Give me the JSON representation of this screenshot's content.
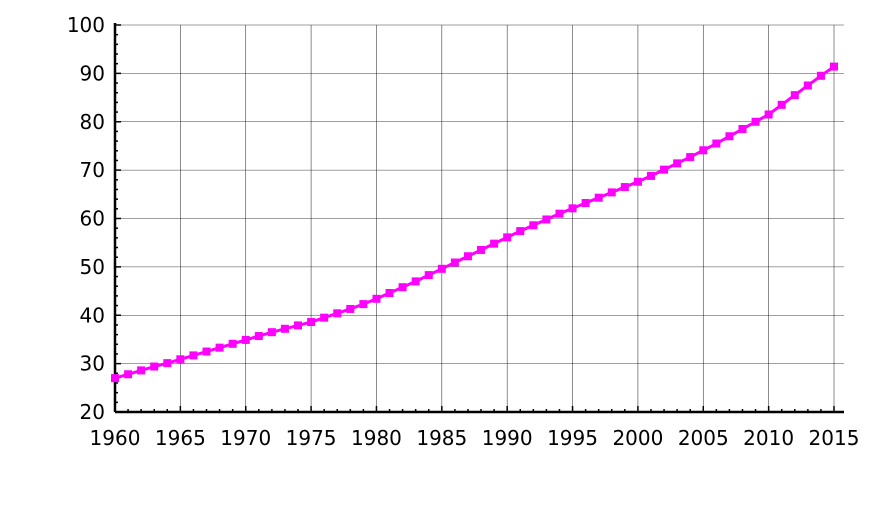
{
  "chart_data": {
    "type": "line",
    "title": "",
    "xlabel": "",
    "ylabel": "",
    "xlim": [
      1960,
      2015
    ],
    "ylim": [
      20,
      100
    ],
    "xticks": [
      "1960",
      "1965",
      "1970",
      "1975",
      "1980",
      "1985",
      "1990",
      "1995",
      "2000",
      "2005",
      "2010",
      "2015"
    ],
    "yticks": [
      "20",
      "30",
      "40",
      "50",
      "60",
      "70",
      "80",
      "90",
      "100"
    ],
    "grid": true,
    "legend": "none",
    "series": [
      {
        "color": "#ff00ff",
        "x": [
          1960,
          1961,
          1962,
          1963,
          1964,
          1965,
          1966,
          1967,
          1968,
          1969,
          1970,
          1971,
          1972,
          1973,
          1974,
          1975,
          1976,
          1977,
          1978,
          1979,
          1980,
          1981,
          1982,
          1983,
          1984,
          1985,
          1986,
          1987,
          1988,
          1989,
          1990,
          1991,
          1992,
          1993,
          1994,
          1995,
          1996,
          1997,
          1998,
          1999,
          2000,
          2001,
          2002,
          2003,
          2004,
          2005,
          2006,
          2007,
          2008,
          2009,
          2010,
          2011,
          2012,
          2013,
          2014,
          2015
        ],
        "y": [
          27.0,
          27.8,
          28.6,
          29.4,
          30.1,
          30.9,
          31.7,
          32.5,
          33.3,
          34.1,
          34.9,
          35.7,
          36.5,
          37.2,
          37.9,
          38.6,
          39.5,
          40.4,
          41.3,
          42.3,
          43.4,
          44.6,
          45.8,
          47.0,
          48.3,
          49.6,
          50.9,
          52.2,
          53.5,
          54.8,
          56.1,
          57.4,
          58.6,
          59.8,
          61.0,
          62.1,
          63.2,
          64.3,
          65.4,
          66.5,
          67.6,
          68.8,
          70.1,
          71.4,
          72.7,
          74.1,
          75.5,
          77.0,
          78.5,
          80.0,
          81.5,
          83.5,
          85.5,
          87.5,
          89.5,
          91.4
        ]
      }
    ]
  }
}
